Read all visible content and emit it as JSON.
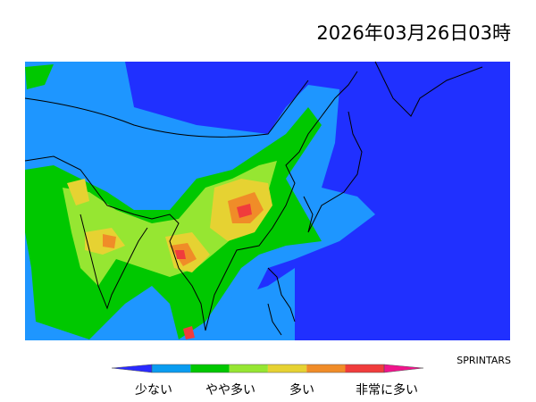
{
  "header": {
    "timestamp": "2026年03月26日03時"
  },
  "credit": "SPRINTARS",
  "legend": {
    "labels": [
      "少ない",
      "やや多い",
      "多い",
      "非常に多い"
    ]
  }
}
